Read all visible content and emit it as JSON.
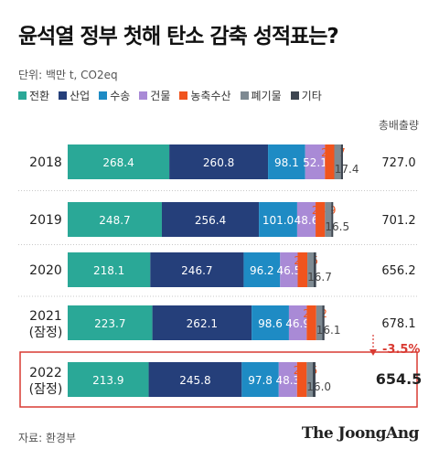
{
  "title": "윤석열 정부 첫해 탄소 감축 성적표는?",
  "unit": "단위: 백만 t, CO2eq",
  "total_header": "총배출량",
  "source": "자료: 환경부",
  "brand": "The JoongAng",
  "change_label": "-3.5%",
  "colors": {
    "전환": "#2aa897",
    "산업": "#253f7a",
    "수송": "#1e8bc4",
    "건물": "#a98ad6",
    "농축수산": "#f0541e",
    "폐기물": "#7e8a92",
    "기타": "#3d4550",
    "highlight": "#d93a32"
  },
  "chart_data": {
    "type": "bar",
    "orientation": "horizontal",
    "stacked": true,
    "unit": "백만 t, CO2eq",
    "categories": [
      [
        "2018"
      ],
      [
        "2019"
      ],
      [
        "2020"
      ],
      [
        "2021",
        "(잠정)"
      ],
      [
        "2022",
        "(잠정)"
      ]
    ],
    "series": [
      {
        "name": "전환",
        "values": [
          268.4,
          248.7,
          218.1,
          223.7,
          213.9
        ],
        "labels": [
          "268.4",
          "248.7",
          "218.1",
          "223.7",
          "213.9"
        ]
      },
      {
        "name": "산업",
        "values": [
          260.8,
          256.4,
          246.7,
          262.1,
          245.8
        ],
        "labels": [
          "260.8",
          "256.4",
          "246.7",
          "262.1",
          "245.8"
        ]
      },
      {
        "name": "수송",
        "values": [
          98.1,
          101.0,
          96.2,
          98.6,
          97.8
        ],
        "labels": [
          "98.1",
          "101.0",
          "96.2",
          "98.6",
          "97.8"
        ]
      },
      {
        "name": "건물",
        "values": [
          52.1,
          48.6,
          46.5,
          46.9,
          48.3
        ],
        "labels": [
          "52.1",
          "48.6",
          "46.5",
          "46.9",
          "48.3"
        ]
      },
      {
        "name": "농축수산",
        "values": [
          24.7,
          24.9,
          25.5,
          25.2,
          25.5
        ],
        "labels": [
          "24.7",
          "24.9",
          "25.5",
          "25.2",
          "25.5"
        ]
      },
      {
        "name": "폐기물",
        "values": [
          17.4,
          16.5,
          16.7,
          16.1,
          16.0
        ],
        "labels": [
          "17.4",
          "16.5",
          "16.7",
          "16.1",
          "16.0"
        ]
      },
      {
        "name": "기타",
        "values": [
          5.5,
          5.1,
          6.5,
          5.5,
          7.2
        ]
      }
    ],
    "totals": [
      727.0,
      701.2,
      656.2,
      678.1,
      654.5
    ],
    "total_labels": [
      "727.0",
      "701.2",
      "656.2",
      "678.1",
      "654.5"
    ],
    "highlight_category_index": 4,
    "legend_position": "top-left",
    "grid": false
  }
}
